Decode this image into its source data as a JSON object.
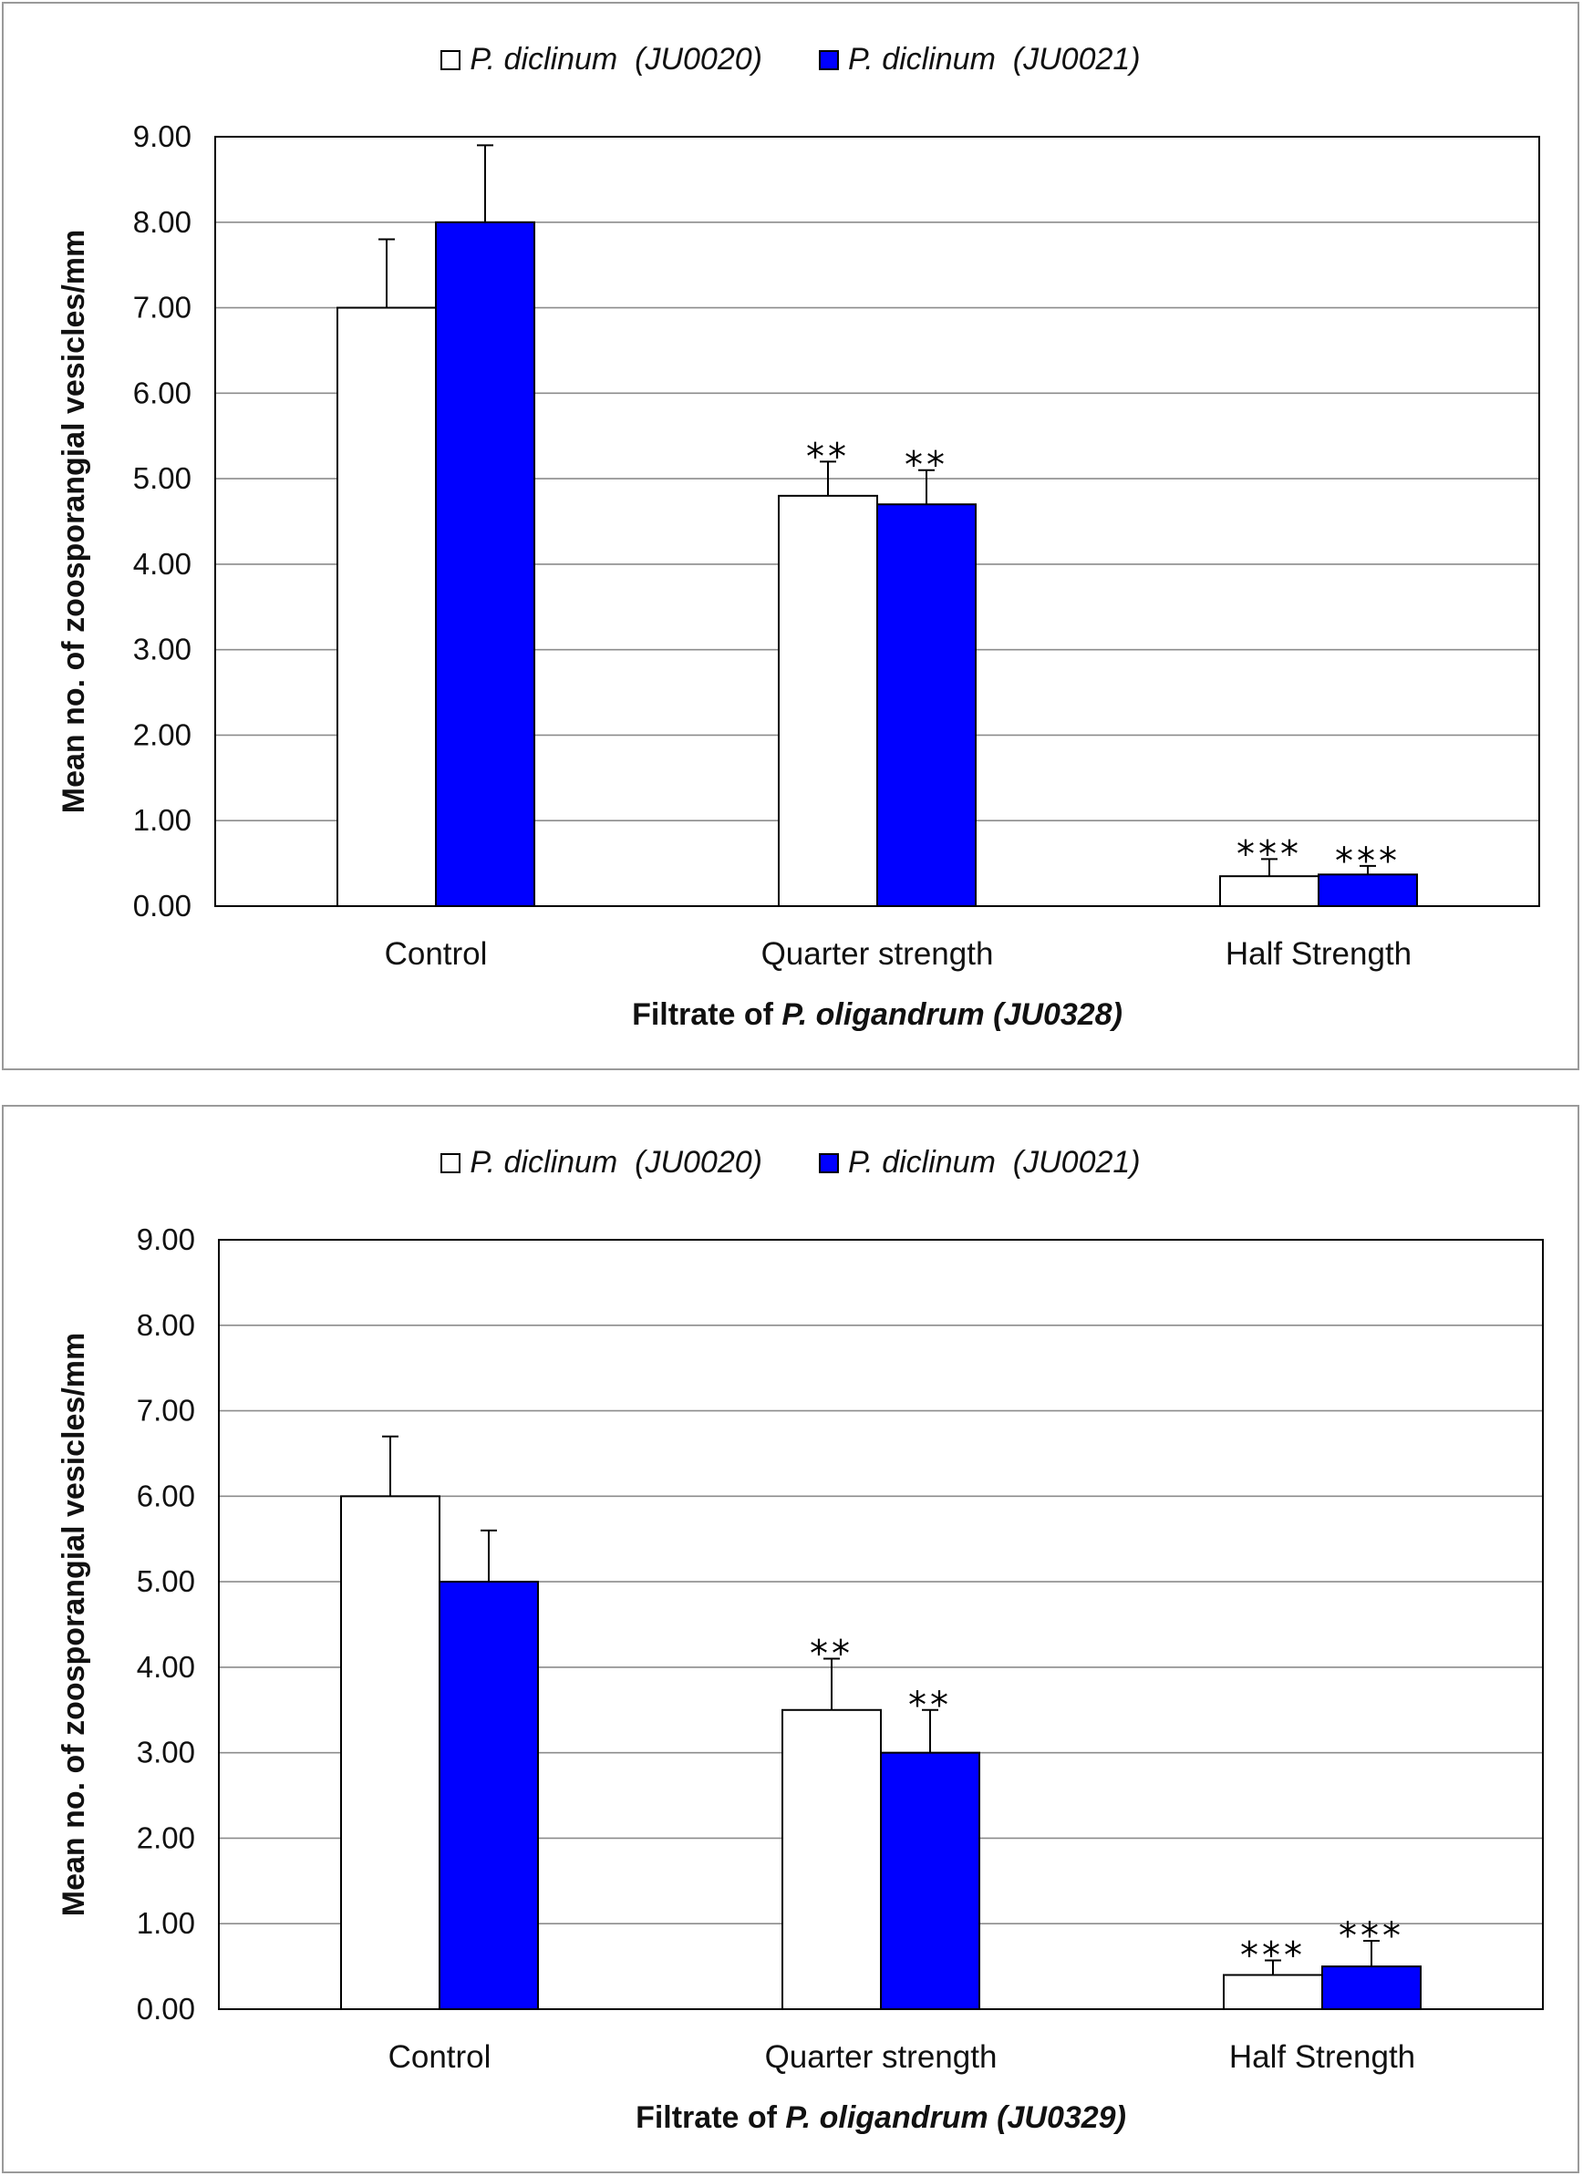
{
  "chart_data": [
    {
      "type": "bar",
      "title": "",
      "categories": [
        "Control",
        "Quarter strength",
        "Half Strength"
      ],
      "series": [
        {
          "name": "P. diclinum  (JU0020)",
          "color": "#ffffff",
          "values": [
            7.0,
            4.8,
            0.35
          ],
          "errors": [
            0.8,
            0.4,
            0.2
          ],
          "significance": [
            "",
            "**",
            "***"
          ]
        },
        {
          "name": "P. diclinum  (JU0021)",
          "color": "#0000ff",
          "values": [
            8.0,
            4.7,
            0.37
          ],
          "errors": [
            0.9,
            0.4,
            0.1
          ],
          "significance": [
            "",
            "**",
            "***"
          ]
        }
      ],
      "xlabel_prefix": "Filtrate of ",
      "xlabel_italic": "P. oligandrum (JU0328)",
      "ylabel": "Mean no. of zoosporangial vesicles/mm",
      "ylim": [
        0,
        9
      ],
      "yticks": [
        "0.00",
        "1.00",
        "2.00",
        "3.00",
        "4.00",
        "5.00",
        "6.00",
        "7.00",
        "8.00",
        "9.00"
      ],
      "grid": true,
      "legend_position": "top-center"
    },
    {
      "type": "bar",
      "title": "",
      "categories": [
        "Control",
        "Quarter strength",
        "Half Strength"
      ],
      "series": [
        {
          "name": "P. diclinum  (JU0020)",
          "color": "#ffffff",
          "values": [
            6.0,
            3.5,
            0.4
          ],
          "errors": [
            0.7,
            0.6,
            0.17
          ],
          "significance": [
            "",
            "**",
            "***"
          ]
        },
        {
          "name": "P. diclinum  (JU0021)",
          "color": "#0000ff",
          "values": [
            5.0,
            3.0,
            0.5
          ],
          "errors": [
            0.6,
            0.5,
            0.3
          ],
          "significance": [
            "",
            "**",
            "***"
          ]
        }
      ],
      "xlabel_prefix": "Filtrate of ",
      "xlabel_italic": "P. oligandrum (JU0329)",
      "ylabel": "Mean no. of zoosporangial vesicles/mm",
      "ylim": [
        0,
        9
      ],
      "yticks": [
        "0.00",
        "1.00",
        "2.00",
        "3.00",
        "4.00",
        "5.00",
        "6.00",
        "7.00",
        "8.00",
        "9.00"
      ],
      "grid": true,
      "legend_position": "top-center"
    }
  ]
}
